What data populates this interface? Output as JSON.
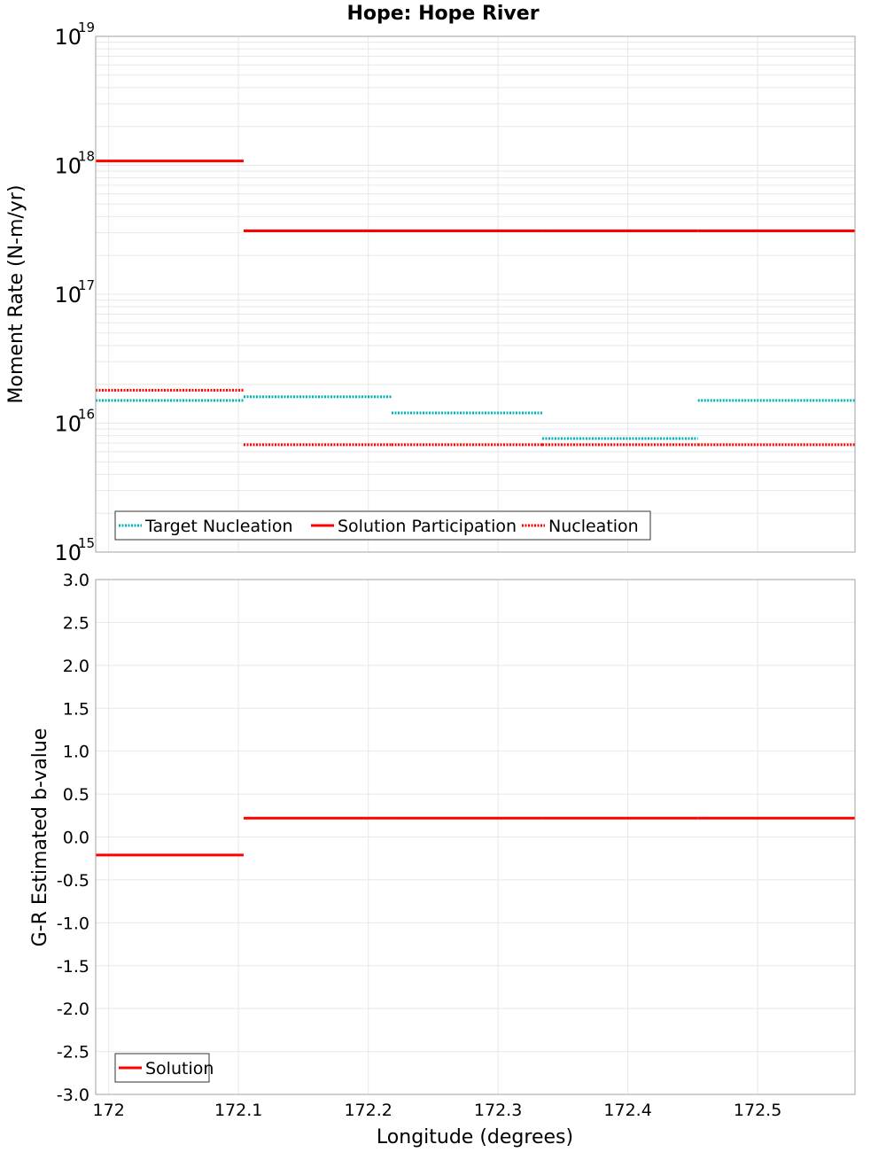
{
  "title": "Hope: Hope River",
  "xlabel": "Longitude (degrees)",
  "colors": {
    "target": "#00b4b4",
    "solution": "#ff0000",
    "frame": "#a0a0a0",
    "grid": "#e8e8e8"
  },
  "chart_data": [
    {
      "type": "line",
      "ylabel": "Moment Rate (N-m/yr)",
      "yscale": "log",
      "ylim": [
        1000000000000000.0,
        1e+19
      ],
      "xlim": [
        171.99,
        172.575
      ],
      "y_ticks": [
        {
          "base": "10",
          "exp": "15",
          "value": 1000000000000000.0
        },
        {
          "base": "10",
          "exp": "16",
          "value": 1e+16
        },
        {
          "base": "10",
          "exp": "17",
          "value": 1e+17
        },
        {
          "base": "10",
          "exp": "18",
          "value": 1e+18
        },
        {
          "base": "10",
          "exp": "19",
          "value": 1e+19
        }
      ],
      "grid": true,
      "legend_position": "bottom-left",
      "series": [
        {
          "name": "Target Nucleation",
          "color": "#00b4b4",
          "style": "dotted",
          "segments": [
            [
              171.99,
              172.104,
              1.5e+16
            ],
            [
              172.104,
              172.218,
              1.6e+16
            ],
            [
              172.218,
              172.334,
              1.2e+16
            ],
            [
              172.334,
              172.454,
              7600000000000000.0
            ],
            [
              172.454,
              172.575,
              1.5e+16
            ]
          ]
        },
        {
          "name": "Solution Participation",
          "color": "#ff0000",
          "style": "solid",
          "segments": [
            [
              171.99,
              172.104,
              1.08e+18
            ],
            [
              172.104,
              172.218,
              3.1e+17
            ],
            [
              172.218,
              172.334,
              3.1e+17
            ],
            [
              172.334,
              172.454,
              3.1e+17
            ],
            [
              172.454,
              172.575,
              3.1e+17
            ]
          ]
        },
        {
          "name": "Nucleation",
          "color": "#ff0000",
          "style": "dotted",
          "segments": [
            [
              171.99,
              172.104,
              1.8e+16
            ],
            [
              172.104,
              172.218,
              6800000000000000.0
            ],
            [
              172.218,
              172.334,
              6800000000000000.0
            ],
            [
              172.334,
              172.454,
              6800000000000000.0
            ],
            [
              172.454,
              172.575,
              6800000000000000.0
            ]
          ]
        }
      ]
    },
    {
      "type": "line",
      "ylabel": "G-R Estimated b-value",
      "yscale": "linear",
      "ylim": [
        -3.0,
        3.0
      ],
      "xlim": [
        171.99,
        172.575
      ],
      "y_ticks": [
        "3.0",
        "2.5",
        "2.0",
        "1.5",
        "1.0",
        "0.5",
        "0.0",
        "-0.5",
        "-1.0",
        "-1.5",
        "-2.0",
        "-2.5",
        "-3.0"
      ],
      "x_ticks": [
        "172",
        "172.1",
        "172.2",
        "172.3",
        "172.4",
        "172.5"
      ],
      "grid": true,
      "legend_position": "bottom-left",
      "series": [
        {
          "name": "Solution",
          "color": "#ff0000",
          "style": "solid",
          "segments": [
            [
              171.99,
              172.104,
              -0.21
            ],
            [
              172.104,
              172.218,
              0.22
            ],
            [
              172.218,
              172.334,
              0.22
            ],
            [
              172.334,
              172.454,
              0.22
            ],
            [
              172.454,
              172.575,
              0.22
            ]
          ]
        }
      ]
    }
  ]
}
